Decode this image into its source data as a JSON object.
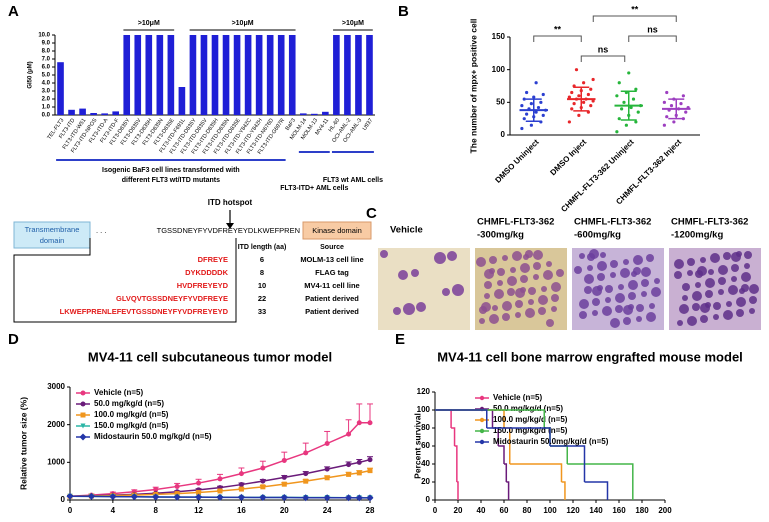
{
  "chart_data": [
    {
      "panel": "A",
      "type": "bar",
      "ylabel": "GI50 (μM)",
      "color": "#1f1fd6",
      "categories": [
        "TEL-FLT3",
        "FLT3-ITD",
        "FLT3-ITD-W51",
        "FLT3-ITD-NPOS",
        "FLT3-ITD-A",
        "FLT3-ITD-F",
        "FLT3-D835Y",
        "FLT3-D835V",
        "FLT3-D835H",
        "FLT3-D835N",
        "FLT3-D835E",
        "FLT3-ITD-F691L",
        "FLT3-ITD-D835Y",
        "FLT3-ITD-D835V",
        "FLT3-ITD-D835H",
        "FLT3-ITD-D835N",
        "FLT3-ITD-D835E",
        "FLT3-ITD-Y842C",
        "FLT3-ITD-Y842H",
        "FLT3-ITD-N676D",
        "FLT3-ITD-G697R",
        "BaF3",
        "MOLM-14",
        "MOLM-13",
        "MV4-11",
        "HL-60",
        "OCI-AML-2",
        "OCI-AML-3",
        "U937"
      ],
      "values": [
        6.6,
        0.65,
        0.8,
        0.25,
        0.2,
        0.45,
        10,
        10,
        10,
        10,
        10,
        3.5,
        10,
        10,
        10,
        10,
        10,
        10,
        10,
        10,
        10,
        10,
        0.2,
        0.15,
        0.4,
        10,
        10,
        10,
        10
      ],
      "ylim": [
        0,
        10
      ],
      "yticks": [
        {
          "value": 0,
          "label": "0.0"
        },
        {
          "value": 1,
          "label": "1.0"
        },
        {
          "value": 2,
          "label": "2.0"
        },
        {
          "value": 3,
          "label": "3.0"
        },
        {
          "value": 4,
          "label": "4.0"
        },
        {
          "value": 5,
          "label": "5.0"
        },
        {
          "value": 6,
          "label": "6.0"
        },
        {
          "value": 7,
          "label": "7.0"
        },
        {
          "value": 8,
          "label": "8.0"
        },
        {
          "value": 9,
          "label": "9.0"
        },
        {
          "value": 10,
          "label": "10.0"
        }
      ],
      "annotations": [
        {
          "text": ">10μM",
          "span": [
            6,
            10
          ]
        },
        {
          "text": ">10μM",
          "span": [
            12,
            21
          ]
        },
        {
          "text": ">10μM",
          "span": [
            25,
            28
          ]
        }
      ],
      "groups": [
        {
          "lines": [
            "Isogenic BaF3 cell lines transformed with",
            "different FLT3 wt/ITD mutants"
          ],
          "span": [
            0,
            20
          ]
        },
        {
          "lines": [
            "FLT3-ITD+ AML cells"
          ],
          "span": [
            22,
            24
          ]
        },
        {
          "lines": [
            "FLT3 wt AML cells"
          ],
          "span": [
            25,
            28
          ]
        }
      ]
    },
    {
      "panel": "B",
      "type": "dot",
      "ylabel": "The number of mpx+ positive cell",
      "ylim": [
        0,
        150
      ],
      "yticks": [
        0,
        50,
        100,
        150
      ],
      "series": [
        {
          "name": "DMSO Uninject",
          "color": "#2b3fd0",
          "mean": 38,
          "sd": 17,
          "values": [
            10,
            15,
            20,
            25,
            28,
            30,
            32,
            35,
            38,
            40,
            42,
            45,
            48,
            50,
            55,
            58,
            62,
            65,
            80
          ]
        },
        {
          "name": "DMSO Inject",
          "color": "#e8262a",
          "mean": 55,
          "sd": 18,
          "values": [
            20,
            30,
            35,
            40,
            42,
            45,
            48,
            50,
            52,
            55,
            55,
            58,
            60,
            62,
            65,
            68,
            70,
            75,
            80,
            85,
            100
          ]
        },
        {
          "name": "CHMFL-FLT3-362 Uninject",
          "color": "#26b53b",
          "mean": 45,
          "sd": 22,
          "values": [
            5,
            15,
            20,
            25,
            30,
            35,
            40,
            42,
            45,
            50,
            55,
            60,
            65,
            70,
            80,
            95
          ]
        },
        {
          "name": "CHMFL-FLT3-362 Inject",
          "color": "#9d3fc0",
          "mean": 40,
          "sd": 15,
          "values": [
            15,
            20,
            25,
            28,
            30,
            35,
            38,
            40,
            42,
            45,
            48,
            50,
            55,
            60,
            65
          ]
        }
      ],
      "comparisons": [
        {
          "groups": [
            0,
            1
          ],
          "label": "**"
        },
        {
          "groups": [
            1,
            2
          ],
          "label": "ns"
        },
        {
          "groups": [
            2,
            3
          ],
          "label": "ns"
        },
        {
          "groups": [
            1,
            3
          ],
          "label": "**"
        }
      ]
    },
    {
      "panel": "D",
      "type": "line",
      "title": "MV4-11 cell subcutaneous tumor model",
      "ylabel": "Relative tumor size (%)",
      "x": [
        0,
        2,
        4,
        6,
        8,
        10,
        12,
        14,
        16,
        18,
        20,
        22,
        24,
        26,
        27,
        28
      ],
      "xlim": [
        0,
        28
      ],
      "xticks": [
        0,
        4,
        8,
        12,
        16,
        20,
        24,
        28
      ],
      "ylim": [
        0,
        3000
      ],
      "yticks": [
        0,
        1000,
        2000,
        3000
      ],
      "series": [
        {
          "name": "Vehicle (n=5)",
          "color": "#e8377f",
          "marker": "circle",
          "values": [
            100,
            130,
            170,
            220,
            280,
            360,
            450,
            560,
            700,
            850,
            1050,
            1250,
            1500,
            1750,
            2050,
            2050
          ],
          "errors": [
            20,
            30,
            40,
            50,
            60,
            80,
            100,
            120,
            150,
            180,
            220,
            260,
            320,
            380,
            500,
            500
          ]
        },
        {
          "name": "50.0 mg/kg/d (n=5)",
          "color": "#6a1b7a",
          "marker": "circle",
          "values": [
            100,
            110,
            130,
            150,
            180,
            220,
            270,
            330,
            410,
            500,
            600,
            700,
            820,
            940,
            1000,
            1070
          ],
          "errors": [
            10,
            12,
            15,
            18,
            20,
            25,
            30,
            35,
            40,
            45,
            50,
            55,
            60,
            70,
            75,
            80
          ]
        },
        {
          "name": "100.0 mg/kg/d (n=5)",
          "color": "#f0961e",
          "marker": "square",
          "values": [
            100,
            105,
            115,
            130,
            150,
            170,
            200,
            240,
            290,
            350,
            420,
            500,
            590,
            680,
            720,
            780
          ],
          "errors": [
            10,
            10,
            12,
            14,
            16,
            18,
            20,
            25,
            30,
            35,
            40,
            45,
            50,
            55,
            60,
            65
          ]
        },
        {
          "name": "150.0 mg/kg/d (n=5)",
          "color": "#2ab5a5",
          "marker": "triangle-down",
          "values": [
            100,
            95,
            90,
            85,
            80,
            80,
            75,
            75,
            70,
            70,
            70,
            65,
            65,
            60,
            60,
            60
          ],
          "errors": [
            15,
            15,
            15,
            15,
            15,
            15,
            15,
            15,
            15,
            15,
            15,
            15,
            15,
            15,
            15,
            15
          ]
        },
        {
          "name": "Midostaurin 50.0 mg/kg/d (n=5)",
          "color": "#2436a8",
          "marker": "diamond",
          "values": [
            100,
            95,
            90,
            85,
            80,
            75,
            75,
            70,
            70,
            65,
            65,
            60,
            60,
            60,
            55,
            55
          ],
          "errors": [
            20,
            20,
            20,
            20,
            20,
            20,
            20,
            20,
            20,
            20,
            20,
            20,
            20,
            20,
            20,
            20
          ]
        }
      ]
    },
    {
      "panel": "E",
      "type": "step",
      "title": "MV4-11 cell bone marrow engrafted mouse model",
      "ylabel": "Percent survival",
      "xlim": [
        0,
        200
      ],
      "xticks": [
        0,
        20,
        40,
        60,
        80,
        100,
        120,
        140,
        160,
        180,
        200
      ],
      "ylim": [
        0,
        120
      ],
      "yticks": [
        0,
        20,
        40,
        60,
        80,
        100,
        120
      ],
      "series": [
        {
          "name": "Vehicle (n=5)",
          "color": "#e8377f",
          "x": [
            0,
            14,
            17,
            19,
            20
          ],
          "values": [
            100,
            80,
            60,
            20,
            0
          ]
        },
        {
          "name": "50.0 mg/kg/d (n=5)",
          "color": "#6a1b7a",
          "x": [
            0,
            50,
            55,
            60,
            62,
            64
          ],
          "values": [
            100,
            80,
            60,
            40,
            20,
            0
          ]
        },
        {
          "name": "100.0 mg/kg/d (n=5)",
          "color": "#f0961e",
          "x": [
            0,
            60,
            65,
            110,
            113
          ],
          "values": [
            100,
            80,
            40,
            20,
            0
          ]
        },
        {
          "name": "150.0 mg/kg/d (n=5)",
          "color": "#44b549",
          "x": [
            0,
            95,
            100,
            115,
            172
          ],
          "values": [
            100,
            80,
            60,
            40,
            0
          ]
        },
        {
          "name": "Midostaurin 50.0mg/kg/d (n=5)",
          "color": "#2436a8",
          "x": [
            0,
            45,
            100,
            130,
            150
          ],
          "values": [
            100,
            80,
            60,
            20,
            0
          ]
        }
      ]
    }
  ],
  "itd_diagram": {
    "hotspot": "ITD hotspot",
    "transmembrane": [
      "Transmembrane",
      "domain"
    ],
    "ellipsis": ". . .",
    "sequence": "TGSSDNEYFYVDFREYEYDLKWEFPREN",
    "kinase": "Kinase domain",
    "columns": [
      "ITD length (aa)",
      "Source"
    ],
    "rows": [
      [
        "DFREYE",
        6,
        "MOLM-13 cell line"
      ],
      [
        "DYKDDDDK",
        8,
        "FLAG tag"
      ],
      [
        "HVDFREYEYD",
        10,
        "MV4-11 cell line"
      ],
      [
        "GLVQVTGSSDNEYFYVDFREYE",
        22,
        "Patient derived"
      ],
      [
        "LKWEFPRENLEFEVTGSSDNEYFYVDFREYEYD",
        33,
        "Patient derived"
      ]
    ]
  },
  "images": {
    "panel": "C",
    "items": [
      [
        "Vehicle"
      ],
      [
        "CHMFL-FLT3-362",
        "-300mg/kg"
      ],
      [
        "CHMFL-FLT3-362",
        "-600mg/kg"
      ],
      [
        "CHMFL-FLT3-362",
        "-1200mg/kg"
      ]
    ]
  }
}
